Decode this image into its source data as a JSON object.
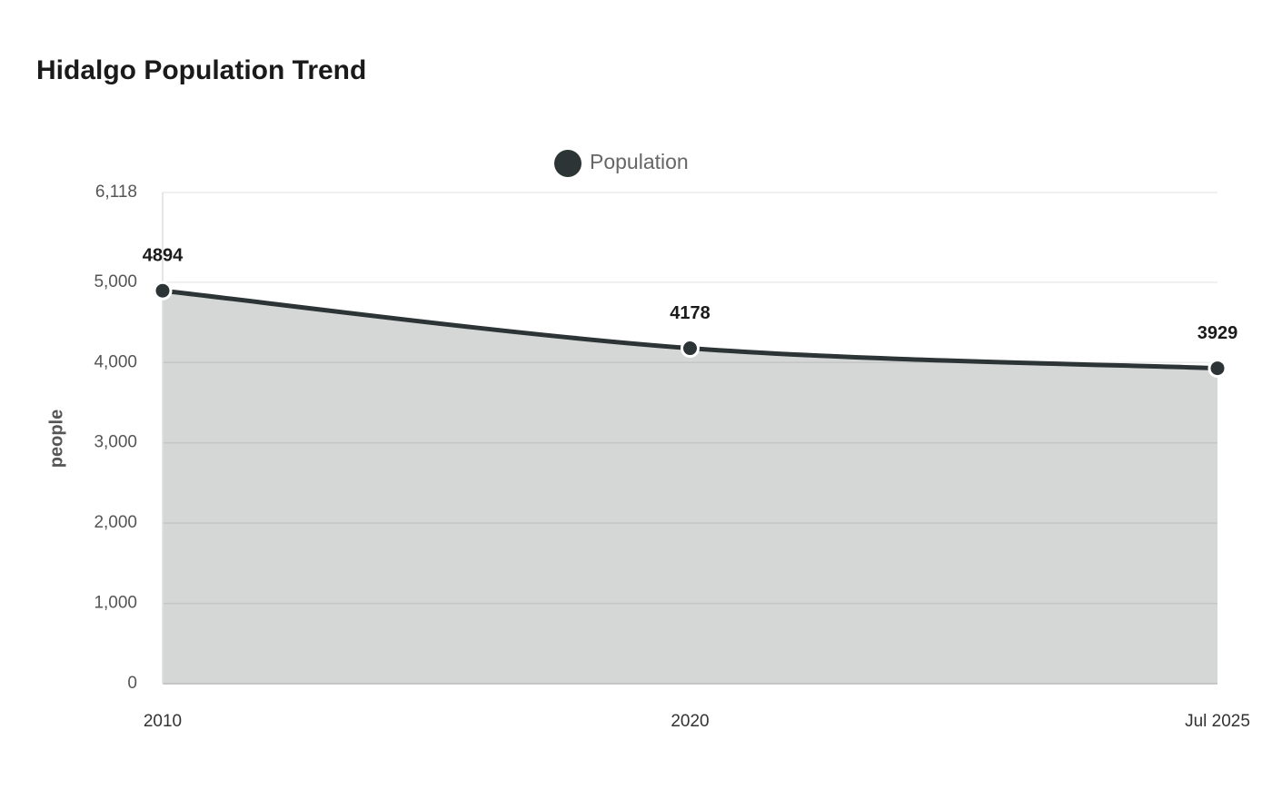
{
  "chart_data": {
    "type": "area",
    "title": "Hidalgo Population Trend",
    "y_label": "people",
    "categories": [
      "2010",
      "2020",
      "Jul 2025"
    ],
    "series": [
      {
        "name": "Population",
        "color": "#2d3436",
        "values": [
          4894,
          4178,
          3929
        ]
      }
    ],
    "fill_color": "#d5d7d7",
    "ylim": [
      0,
      6118
    ],
    "yticks": [
      0,
      {
        "value": 1000,
        "label": "1,000"
      },
      {
        "value": 2000,
        "label": "2,000"
      },
      {
        "value": 3000,
        "label": "3,000"
      },
      {
        "value": 4000,
        "label": "4,000"
      },
      {
        "value": 5000,
        "label": "5,000"
      },
      {
        "value": 6118,
        "label": "6,118"
      }
    ],
    "grid": true,
    "legend": "top"
  }
}
